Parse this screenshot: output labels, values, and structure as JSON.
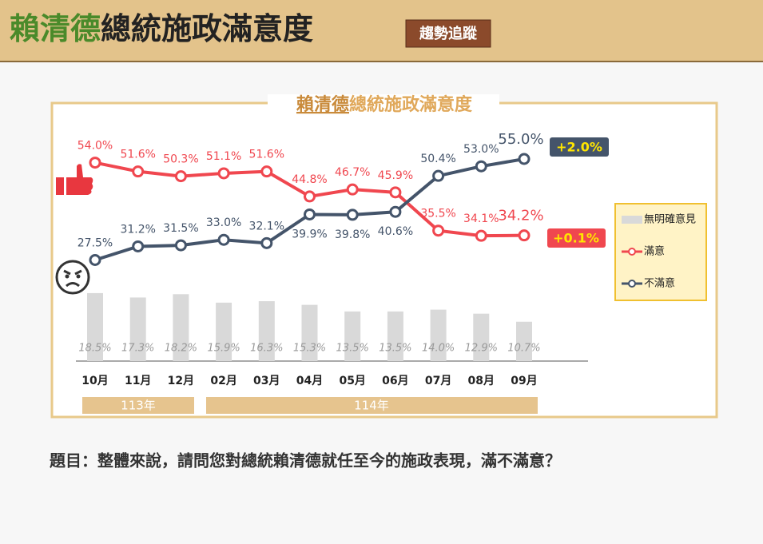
{
  "header": {
    "title_parts": [
      "賴清德",
      "總統施政滿意度"
    ],
    "badge": "趨勢追蹤"
  },
  "chart_data": {
    "type": "line",
    "title_parts": [
      "賴清德",
      "總統施政滿意度"
    ],
    "categories": [
      "10月",
      "11月",
      "12月",
      "02月",
      "03月",
      "04月",
      "05月",
      "06月",
      "07月",
      "08月",
      "09月"
    ],
    "year_groups": [
      "113年",
      "114年"
    ],
    "series": [
      {
        "name": "無明確意見",
        "color": "#d9d9d9",
        "kind": "bar",
        "values": [
          18.5,
          17.3,
          18.2,
          15.9,
          16.3,
          15.3,
          13.5,
          13.5,
          14.0,
          12.9,
          10.7
        ],
        "value_labels": [
          "18.5%",
          "17.3%",
          "18.2%",
          "15.9%",
          "16.3%",
          "15.3%",
          "13.5%",
          "13.5%",
          "14.0%",
          "12.9%",
          "10.7%"
        ]
      },
      {
        "name": "滿意",
        "color": "#f0474f",
        "kind": "line",
        "values": [
          54.0,
          51.6,
          50.3,
          51.1,
          51.6,
          44.8,
          46.7,
          45.9,
          35.5,
          34.1,
          34.2
        ],
        "value_labels": [
          "54.0%",
          "51.6%",
          "50.3%",
          "51.1%",
          "51.6%",
          "44.8%",
          "46.7%",
          "45.9%",
          "35.5%",
          "34.1%",
          "34.2%"
        ]
      },
      {
        "name": "不滿意",
        "color": "#44546a",
        "kind": "line",
        "values": [
          27.5,
          31.2,
          31.5,
          33.0,
          32.1,
          39.9,
          39.8,
          40.6,
          50.4,
          53.0,
          55.0
        ],
        "value_labels": [
          "27.5%",
          "31.2%",
          "31.5%",
          "33.0%",
          "32.1%",
          "39.9%",
          "39.8%",
          "40.6%",
          "50.4%",
          "53.0%",
          "55.0%"
        ]
      }
    ],
    "annotations": [
      {
        "text": "+2.0%",
        "value": 2.0
      },
      {
        "text": "+0.1%",
        "value": 0.1
      }
    ]
  },
  "question": "題目：整體來說，請問您對總統賴清德就任至今的施政表現，滿不滿意？"
}
